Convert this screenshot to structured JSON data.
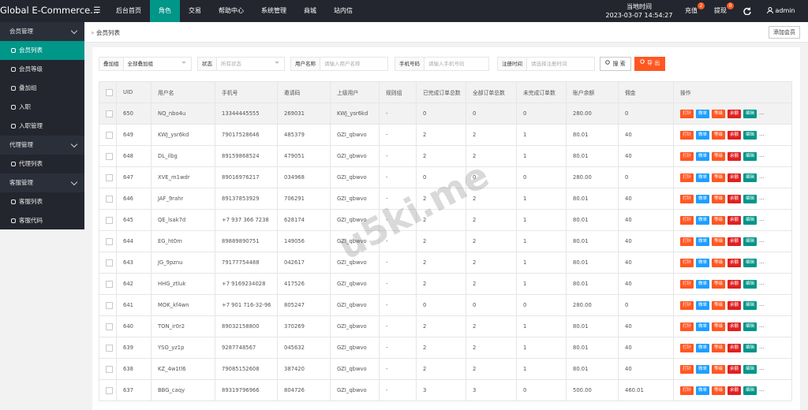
{
  "header": {
    "logo": "Global E-Commerce...",
    "menu_icon": "☰",
    "nav": [
      {
        "label": "后台首页",
        "active": false
      },
      {
        "label": "角色",
        "active": true
      },
      {
        "label": "交易",
        "active": false
      },
      {
        "label": "帮助中心",
        "active": false
      },
      {
        "label": "系统管理",
        "active": false
      },
      {
        "label": "商城",
        "active": false
      },
      {
        "label": "站内信",
        "active": false
      }
    ],
    "clock_label": "当地时间",
    "clock": "2023-03-07 14:54:27",
    "recharge": {
      "label": "充值",
      "badge": 2
    },
    "withdraw": {
      "label": "提现",
      "badge": 0
    },
    "user": "admin"
  },
  "sidebar": [
    {
      "title": "会员管理",
      "items": [
        {
          "label": "会员列表",
          "active": true
        },
        {
          "label": "会员等级",
          "active": false
        },
        {
          "label": "叠加组",
          "active": false
        },
        {
          "label": "入职",
          "active": false
        },
        {
          "label": "入职管理",
          "active": false
        }
      ]
    },
    {
      "title": "代理管理",
      "items": [
        {
          "label": "代理列表",
          "active": false
        }
      ]
    },
    {
      "title": "客服管理",
      "items": [
        {
          "label": "客服列表",
          "active": false
        },
        {
          "label": "客服代码",
          "active": false
        }
      ]
    }
  ],
  "breadcrumb": {
    "separator": "»",
    "title": "会员列表",
    "add_button": "添加会员"
  },
  "filters": [
    {
      "label": "叠加组",
      "value": "全部叠加组",
      "kind": "select"
    },
    {
      "label": "状态",
      "placeholder": "所有状态",
      "kind": "select"
    },
    {
      "label": "用户名称",
      "placeholder": "请输入用户名称",
      "kind": "input"
    },
    {
      "label": "手机号码",
      "placeholder": "请输入手机号码",
      "kind": "input"
    },
    {
      "label": "注册时间",
      "placeholder": "请选择注册时间",
      "kind": "input"
    }
  ],
  "search_button": "搜 索",
  "export_button": "导 出",
  "table": {
    "columns": [
      "UID",
      "用户名",
      "手机号",
      "邀请码",
      "上级用户",
      "规则组",
      "已完成订单总数",
      "全部订单总数",
      "未完成订单数",
      "账户余额",
      "佣金",
      "操作"
    ],
    "highlighted_row": 0,
    "rows": [
      [
        "650",
        "NQ_nbo4u",
        "13344445555",
        "269031",
        "KWJ_ysr6kd",
        "-",
        "0",
        "0",
        "0",
        "280.00",
        "0"
      ],
      [
        "649",
        "KWJ_ysr6kd",
        "79017528646",
        "485379",
        "GZI_qbwvo",
        "-",
        "2",
        "2",
        "1",
        "80.01",
        "40"
      ],
      [
        "648",
        "DL_ilbg",
        "89159868524",
        "479051",
        "GZI_qbwvo",
        "-",
        "2",
        "2",
        "1",
        "80.01",
        "40"
      ],
      [
        "647",
        "XVE_m1wdr",
        "89016976217",
        "034968",
        "GZI_qbwvo",
        "-",
        "0",
        "0",
        "0",
        "280.00",
        "0"
      ],
      [
        "646",
        "JAF_9rahr",
        "89137853929",
        "706291",
        "GZI_qbwvo",
        "-",
        "2",
        "2",
        "1",
        "80.01",
        "40"
      ],
      [
        "645",
        "QE_lsak7d",
        "+7 937 366 7238",
        "628174",
        "GZI_qbwvo",
        "-",
        "2",
        "2",
        "1",
        "80.01",
        "40"
      ],
      [
        "644",
        "EG_ht0m",
        "89889890751",
        "149056",
        "GZI_qbwvo",
        "-",
        "2",
        "2",
        "1",
        "80.01",
        "40"
      ],
      [
        "643",
        "JG_9pznu",
        "79177754488",
        "042617",
        "GZI_qbwvo",
        "-",
        "2",
        "2",
        "1",
        "80.01",
        "40"
      ],
      [
        "642",
        "HHG_ztluk",
        "+7 9169234028",
        "417526",
        "GZI_qbwvo",
        "-",
        "2",
        "2",
        "1",
        "80.01",
        "40"
      ],
      [
        "641",
        "MOK_kf4wn",
        "+7 901 716-32-96",
        "805247",
        "GZI_qbwvo",
        "-",
        "0",
        "0",
        "0",
        "280.00",
        "0"
      ],
      [
        "640",
        "TON_ir0r2",
        "89032158800",
        "370269",
        "GZI_qbwvo",
        "-",
        "2",
        "2",
        "1",
        "80.01",
        "40"
      ],
      [
        "639",
        "YSO_yz1p",
        "9287748567",
        "045632",
        "GZI_qbwvo",
        "-",
        "2",
        "2",
        "1",
        "80.01",
        "40"
      ],
      [
        "638",
        "KZ_4w1tl6",
        "79085152608",
        "387420",
        "GZI_qbwvo",
        "-",
        "2",
        "2",
        "1",
        "80.01",
        "40"
      ],
      [
        "637",
        "BBG_caqy",
        "89319796966",
        "804726",
        "GZI_qbwvo",
        "-",
        "3",
        "3",
        "0",
        "500.00",
        "460.01"
      ]
    ],
    "actions": [
      {
        "label": "打针",
        "color": "#ff5722"
      },
      {
        "label": "做单",
        "color": "#1e9fff"
      },
      {
        "label": "等级",
        "color": "#ff5722"
      },
      {
        "label": "余额",
        "color": "#e02020"
      },
      {
        "label": "编辑",
        "color": "#009688"
      }
    ],
    "more": "..."
  },
  "watermark": "u5ki.me"
}
